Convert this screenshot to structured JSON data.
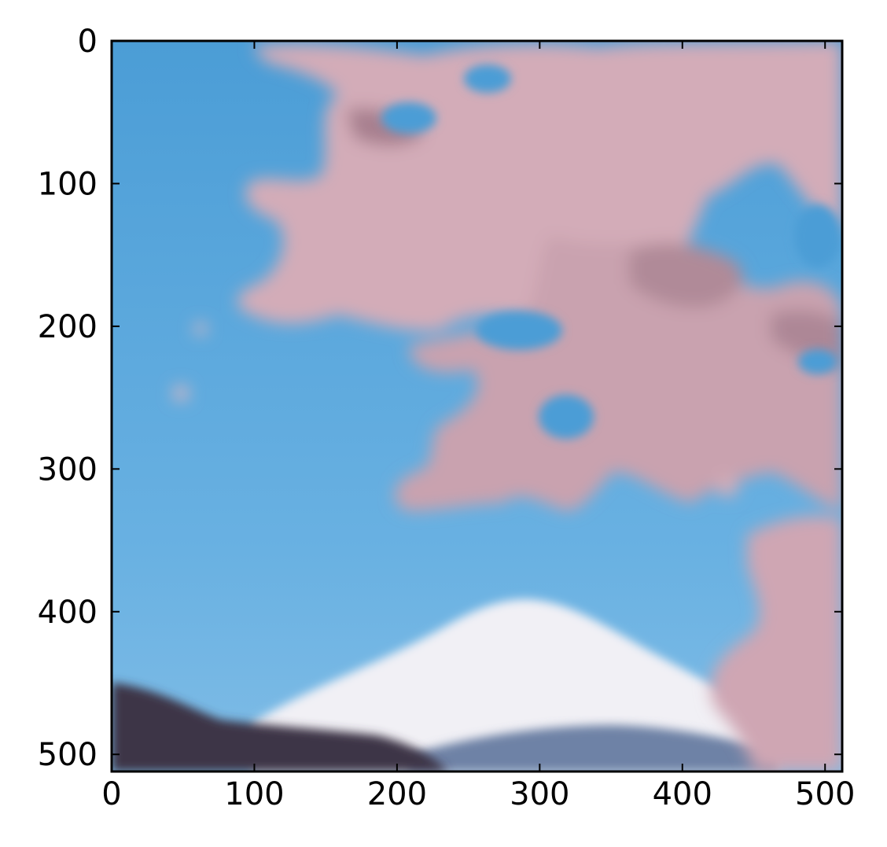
{
  "chart_data": {
    "type": "image",
    "title": "",
    "xlabel": "",
    "ylabel": "",
    "xlim": [
      0,
      512
    ],
    "ylim": [
      512,
      0
    ],
    "y_inverted": true,
    "xticks": [
      0,
      100,
      200,
      300,
      400,
      500
    ],
    "yticks": [
      0,
      100,
      200,
      300,
      400,
      500
    ],
    "xtick_labels": [
      "0",
      "100",
      "200",
      "300",
      "400",
      "500"
    ],
    "ytick_labels": [
      "0",
      "100",
      "200",
      "300",
      "400",
      "500"
    ],
    "image_content": "blurred-photo-cherry-blossoms-and-snow-capped-mountain",
    "colors": {
      "sky_light": "#6fb3e3",
      "sky": "#4a9fd8",
      "blossom": "#d2aab6",
      "blossom_shadow": "#a98492",
      "snow": "#f2f1f5",
      "hill_dark": "#3f3548",
      "hill_mid": "#6a7fa3"
    }
  }
}
